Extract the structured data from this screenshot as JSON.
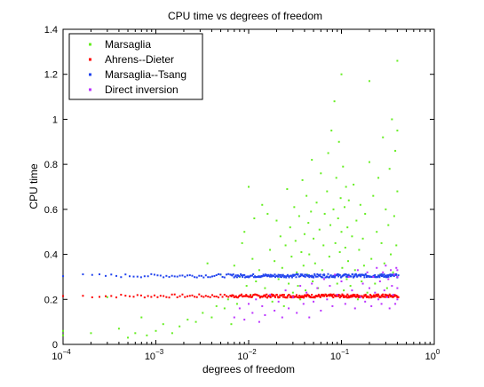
{
  "chart_data": {
    "type": "scatter",
    "title": "CPU time vs degrees of freedom",
    "xlabel": "degrees of freedom",
    "ylabel": "CPU time",
    "xscale": "log",
    "xlim": [
      0.0001,
      1
    ],
    "ylim": [
      0,
      1.4
    ],
    "x_ticks": [
      {
        "v": 0.0001,
        "base": "10",
        "exp": "−4"
      },
      {
        "v": 0.001,
        "base": "10",
        "exp": "−3"
      },
      {
        "v": 0.01,
        "base": "10",
        "exp": "−2"
      },
      {
        "v": 0.1,
        "base": "10",
        "exp": "−1"
      },
      {
        "v": 1,
        "base": "10",
        "exp": "0"
      }
    ],
    "y_ticks": [
      {
        "v": 0,
        "label": "0"
      },
      {
        "v": 0.2,
        "label": "0.2"
      },
      {
        "v": 0.4,
        "label": "0.4"
      },
      {
        "v": 0.6,
        "label": "0.6"
      },
      {
        "v": 0.8,
        "label": "0.8"
      },
      {
        "v": 1.0,
        "label": "1"
      },
      {
        "v": 1.2,
        "label": "1.2"
      },
      {
        "v": 1.4,
        "label": "1.4"
      }
    ],
    "grid": false,
    "legend_position": "top-left",
    "series": [
      {
        "name": "Marsaglia",
        "color": "#66ee22",
        "points": [
          [
            0.0001,
            0.04
          ],
          [
            0.0001,
            0.06
          ],
          [
            0.0002,
            0.05
          ],
          [
            0.0003,
            0.21
          ],
          [
            0.0004,
            0.07
          ],
          [
            0.0005,
            0.03
          ],
          [
            0.0006,
            0.05
          ],
          [
            0.0007,
            0.12
          ],
          [
            0.0008,
            0.04
          ],
          [
            0.001,
            0.06
          ],
          [
            0.0012,
            0.09
          ],
          [
            0.0015,
            0.05
          ],
          [
            0.0018,
            0.08
          ],
          [
            0.0022,
            0.11
          ],
          [
            0.0027,
            0.1
          ],
          [
            0.0032,
            0.14
          ],
          [
            0.0036,
            0.36
          ],
          [
            0.004,
            0.12
          ],
          [
            0.0045,
            0.17
          ],
          [
            0.005,
            0.31
          ],
          [
            0.0055,
            0.16
          ],
          [
            0.006,
            0.2
          ],
          [
            0.0065,
            0.09
          ],
          [
            0.007,
            0.35
          ],
          [
            0.0075,
            0.18
          ],
          [
            0.008,
            0.3
          ],
          [
            0.0085,
            0.45
          ],
          [
            0.009,
            0.5
          ],
          [
            0.0095,
            0.26
          ],
          [
            0.01,
            0.7
          ],
          [
            0.0105,
            0.22
          ],
          [
            0.011,
            0.38
          ],
          [
            0.0115,
            0.56
          ],
          [
            0.012,
            0.28
          ],
          [
            0.013,
            0.33
          ],
          [
            0.014,
            0.62
          ],
          [
            0.015,
            0.25
          ],
          [
            0.016,
            0.58
          ],
          [
            0.017,
            0.42
          ],
          [
            0.018,
            0.19
          ],
          [
            0.019,
            0.37
          ],
          [
            0.02,
            0.55
          ],
          [
            0.021,
            0.29
          ],
          [
            0.022,
            0.48
          ],
          [
            0.023,
            0.34
          ],
          [
            0.024,
            0.17
          ],
          [
            0.025,
            0.44
          ],
          [
            0.026,
            0.69
          ],
          [
            0.027,
            0.27
          ],
          [
            0.028,
            0.52
          ],
          [
            0.029,
            0.39
          ],
          [
            0.03,
            0.23
          ],
          [
            0.031,
            0.61
          ],
          [
            0.032,
            0.46
          ],
          [
            0.033,
            0.32
          ],
          [
            0.034,
            0.26
          ],
          [
            0.035,
            0.57
          ],
          [
            0.036,
            0.2
          ],
          [
            0.037,
            0.41
          ],
          [
            0.038,
            0.73
          ],
          [
            0.039,
            0.35
          ],
          [
            0.04,
            0.49
          ],
          [
            0.041,
            0.24
          ],
          [
            0.042,
            0.66
          ],
          [
            0.043,
            0.31
          ],
          [
            0.044,
            0.54
          ],
          [
            0.045,
            0.4
          ],
          [
            0.046,
            0.21
          ],
          [
            0.047,
            0.59
          ],
          [
            0.048,
            0.82
          ],
          [
            0.049,
            0.28
          ],
          [
            0.05,
            0.47
          ],
          [
            0.052,
            0.36
          ],
          [
            0.054,
            0.63
          ],
          [
            0.056,
            0.25
          ],
          [
            0.058,
            0.51
          ],
          [
            0.06,
            0.76
          ],
          [
            0.062,
            0.33
          ],
          [
            0.064,
            0.44
          ],
          [
            0.066,
            0.58
          ],
          [
            0.068,
            0.22
          ],
          [
            0.07,
            0.68
          ],
          [
            0.072,
            0.85
          ],
          [
            0.074,
            0.39
          ],
          [
            0.076,
            0.53
          ],
          [
            0.078,
            0.95
          ],
          [
            0.08,
            0.3
          ],
          [
            0.082,
            0.6
          ],
          [
            0.084,
            1.08
          ],
          [
            0.086,
            0.45
          ],
          [
            0.088,
            0.74
          ],
          [
            0.09,
            0.27
          ],
          [
            0.092,
            0.56
          ],
          [
            0.094,
            0.9
          ],
          [
            0.096,
            0.41
          ],
          [
            0.098,
            0.65
          ],
          [
            0.1,
            1.2
          ],
          [
            0.1,
            0.5
          ],
          [
            0.102,
            0.34
          ],
          [
            0.104,
            0.79
          ],
          [
            0.106,
            0.24
          ],
          [
            0.108,
            0.61
          ],
          [
            0.11,
            0.43
          ],
          [
            0.112,
            0.7
          ],
          [
            0.114,
            0.29
          ],
          [
            0.116,
            0.52
          ],
          [
            0.118,
            0.37
          ],
          [
            0.12,
            0.64
          ],
          [
            0.125,
            0.26
          ],
          [
            0.13,
            0.48
          ],
          [
            0.135,
            0.71
          ],
          [
            0.14,
            0.33
          ],
          [
            0.145,
            0.55
          ],
          [
            0.15,
            0.2
          ],
          [
            0.155,
            0.42
          ],
          [
            0.16,
            0.62
          ],
          [
            0.165,
            0.28
          ],
          [
            0.17,
            0.47
          ],
          [
            0.175,
            0.35
          ],
          [
            0.18,
            0.58
          ],
          [
            0.19,
            0.23
          ],
          [
            0.2,
            0.81
          ],
          [
            0.2,
            1.17
          ],
          [
            0.21,
            0.38
          ],
          [
            0.22,
            0.66
          ],
          [
            0.23,
            0.27
          ],
          [
            0.24,
            0.5
          ],
          [
            0.25,
            0.74
          ],
          [
            0.26,
            0.31
          ],
          [
            0.27,
            0.45
          ],
          [
            0.28,
            0.92
          ],
          [
            0.29,
            0.36
          ],
          [
            0.3,
            0.6
          ],
          [
            0.31,
            0.25
          ],
          [
            0.32,
            0.53
          ],
          [
            0.33,
            0.78
          ],
          [
            0.34,
            0.4
          ],
          [
            0.35,
            1.0
          ],
          [
            0.36,
            0.32
          ],
          [
            0.37,
            0.57
          ],
          [
            0.38,
            0.86
          ],
          [
            0.39,
            0.44
          ],
          [
            0.4,
            1.26
          ],
          [
            0.4,
            0.68
          ],
          [
            0.4,
            0.3
          ],
          [
            0.4,
            0.95
          ]
        ]
      },
      {
        "name": "Ahrens--Dieter",
        "color": "#ff0000",
        "band": {
          "y": 0.215,
          "spread": 0.015,
          "xmin": 0.0001,
          "xmax": 0.4,
          "n": 170
        }
      },
      {
        "name": "Marsaglia--Tsang",
        "color": "#2244ee",
        "band": {
          "y": 0.305,
          "spread": 0.015,
          "xmin": 0.0001,
          "xmax": 0.4,
          "n": 170
        }
      },
      {
        "name": "Direct inversion",
        "color": "#bb33ff",
        "points": [
          [
            0.007,
            0.12
          ],
          [
            0.008,
            0.16
          ],
          [
            0.009,
            0.11
          ],
          [
            0.01,
            0.18
          ],
          [
            0.011,
            0.14
          ],
          [
            0.012,
            0.2
          ],
          [
            0.013,
            0.1
          ],
          [
            0.014,
            0.17
          ],
          [
            0.015,
            0.13
          ],
          [
            0.017,
            0.22
          ],
          [
            0.019,
            0.15
          ],
          [
            0.021,
            0.19
          ],
          [
            0.023,
            0.12
          ],
          [
            0.025,
            0.24
          ],
          [
            0.027,
            0.16
          ],
          [
            0.03,
            0.21
          ],
          [
            0.033,
            0.14
          ],
          [
            0.036,
            0.26
          ],
          [
            0.039,
            0.18
          ],
          [
            0.042,
            0.23
          ],
          [
            0.045,
            0.12
          ],
          [
            0.048,
            0.27
          ],
          [
            0.05,
            0.19
          ],
          [
            0.055,
            0.25
          ],
          [
            0.06,
            0.15
          ],
          [
            0.065,
            0.29
          ],
          [
            0.07,
            0.2
          ],
          [
            0.075,
            0.26
          ],
          [
            0.08,
            0.17
          ],
          [
            0.085,
            0.31
          ],
          [
            0.09,
            0.22
          ],
          [
            0.1,
            0.28
          ],
          [
            0.11,
            0.18
          ],
          [
            0.12,
            0.3
          ],
          [
            0.13,
            0.24
          ],
          [
            0.14,
            0.16
          ],
          [
            0.15,
            0.33
          ],
          [
            0.16,
            0.21
          ],
          [
            0.17,
            0.27
          ],
          [
            0.18,
            0.19
          ],
          [
            0.19,
            0.32
          ],
          [
            0.2,
            0.25
          ],
          [
            0.21,
            0.17
          ],
          [
            0.22,
            0.3
          ],
          [
            0.23,
            0.23
          ],
          [
            0.24,
            0.34
          ],
          [
            0.25,
            0.2
          ],
          [
            0.26,
            0.28
          ],
          [
            0.27,
            0.18
          ],
          [
            0.28,
            0.32
          ],
          [
            0.29,
            0.24
          ],
          [
            0.3,
            0.35
          ],
          [
            0.31,
            0.21
          ],
          [
            0.32,
            0.29
          ],
          [
            0.33,
            0.16
          ],
          [
            0.34,
            0.33
          ],
          [
            0.35,
            0.26
          ],
          [
            0.36,
            0.22
          ],
          [
            0.37,
            0.31
          ],
          [
            0.38,
            0.18
          ],
          [
            0.39,
            0.34
          ],
          [
            0.4,
            0.25
          ],
          [
            0.4,
            0.3
          ],
          [
            0.4,
            0.2
          ],
          [
            0.4,
            0.33
          ]
        ]
      }
    ]
  }
}
